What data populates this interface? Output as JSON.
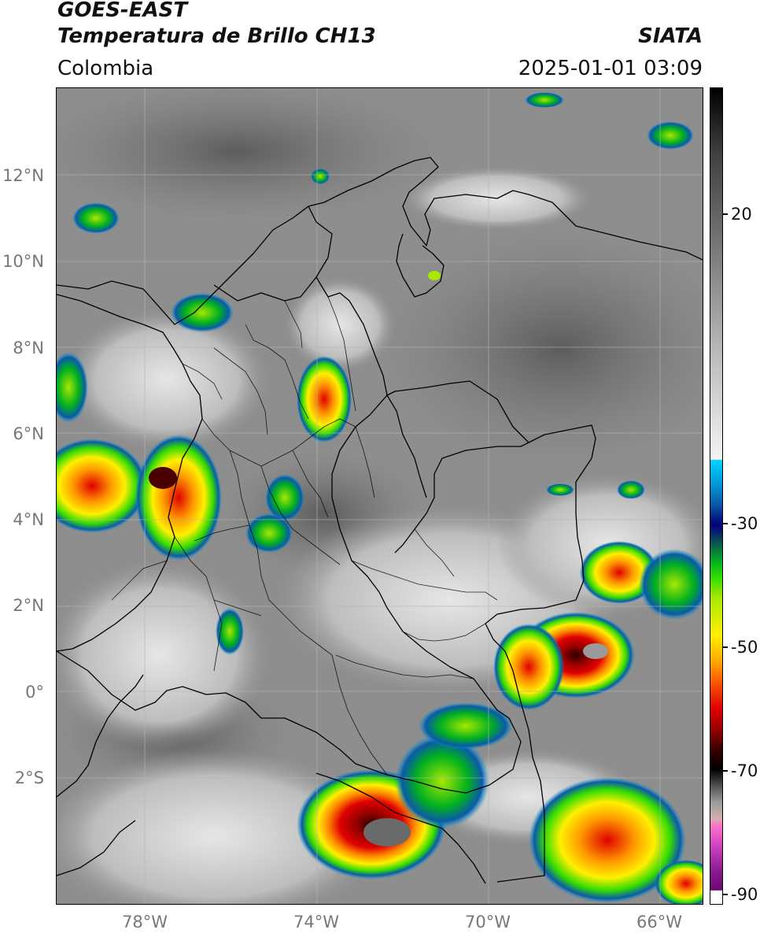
{
  "header": {
    "satellite": "GOES-EAST",
    "product": "Temperatura de Brillo CH13",
    "region": "Colombia",
    "organization": "SIATA",
    "timestamp": "2025-01-01 03:09"
  },
  "map": {
    "extent": {
      "lon": [
        -80,
        -65
      ],
      "lat": [
        -5.2,
        13.6
      ]
    },
    "lat_ticks": [
      "12°N",
      "10°N",
      "8°N",
      "6°N",
      "4°N",
      "2°N",
      "0°",
      "2°S"
    ],
    "lon_ticks": [
      "78°W",
      "74°W",
      "70°W",
      "66°W"
    ],
    "gridlines": true
  },
  "colorbar": {
    "ticks": [
      "20",
      "-30",
      "-50",
      "-70",
      "-90"
    ],
    "colors": {
      "warm": "#7a7a7a",
      "cold_blue": "#0a5aa8",
      "green": "#33dd00",
      "yellow": "#fff000",
      "red": "#e00000",
      "darkest": "#000000",
      "magenta": "#cc40c0"
    }
  }
}
